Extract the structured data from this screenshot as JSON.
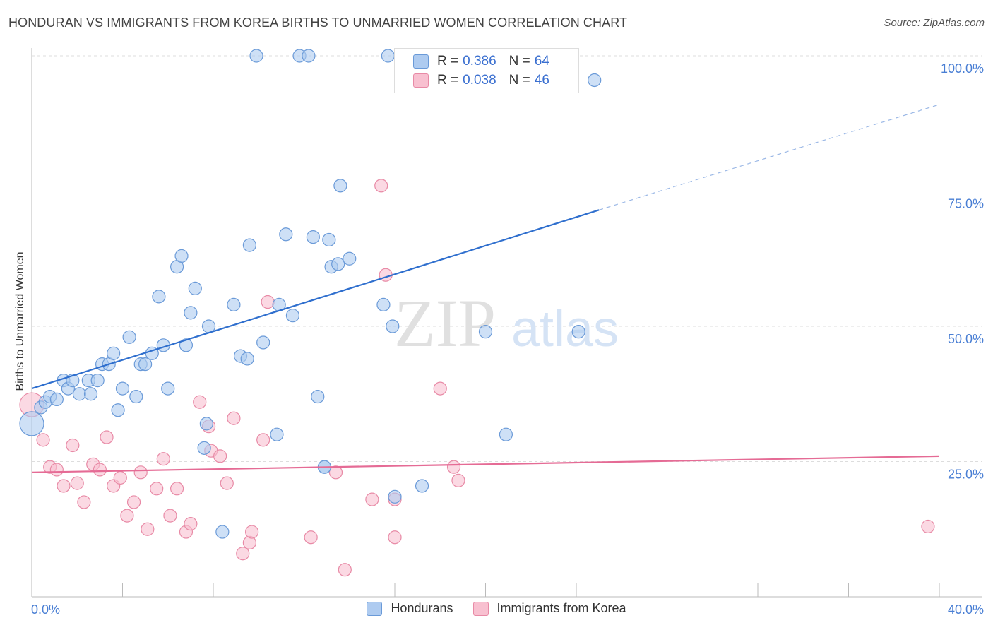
{
  "header": {
    "title": "HONDURAN VS IMMIGRANTS FROM KOREA BIRTHS TO UNMARRIED WOMEN CORRELATION CHART",
    "source": "Source: ZipAtlas.com"
  },
  "watermark": {
    "zip": "ZIP",
    "atlas": "atlas"
  },
  "legend_top": {
    "rows": [
      {
        "r_label": "R =",
        "r_value": "0.386",
        "n_label": "N =",
        "n_value": "64"
      },
      {
        "r_label": "R =",
        "r_value": "0.038",
        "n_label": "N =",
        "n_value": "46"
      }
    ]
  },
  "legend_bottom": {
    "series1": "Hondurans",
    "series2": "Immigrants from Korea"
  },
  "colors": {
    "hondurans_fill": "#aecbf0",
    "hondurans_stroke": "#6a9ad8",
    "hondurans_line": "#2f6fce",
    "korea_fill": "#f8c0d0",
    "korea_stroke": "#e88aa6",
    "korea_line": "#e56b95",
    "grid": "#dddddd",
    "tick_label": "#4a7fd4"
  },
  "chart_data": {
    "type": "scatter",
    "title": "HONDURAN VS IMMIGRANTS FROM KOREA BIRTHS TO UNMARRIED WOMEN CORRELATION CHART",
    "xlabel": "",
    "ylabel": "Births to Unmarried Women",
    "xlim": [
      0,
      40
    ],
    "ylim": [
      0,
      100
    ],
    "x_tick_labels": [
      "0.0%",
      "40.0%"
    ],
    "y_tick_values": [
      25,
      50,
      75,
      100
    ],
    "y_tick_labels": [
      "25.0%",
      "50.0%",
      "75.0%",
      "100.0%"
    ],
    "series": [
      {
        "name": "Hondurans",
        "r": 0.386,
        "n": 64,
        "trend": {
          "start": [
            0,
            38.5
          ],
          "end": [
            25,
            71.5
          ],
          "dashed_end": [
            40,
            91
          ]
        },
        "points": [
          [
            0.0,
            32,
            "big"
          ],
          [
            0.4,
            35
          ],
          [
            0.6,
            36
          ],
          [
            0.8,
            37
          ],
          [
            1.1,
            36.5
          ],
          [
            1.4,
            40
          ],
          [
            1.6,
            38.5
          ],
          [
            1.8,
            40
          ],
          [
            2.1,
            37.5
          ],
          [
            2.5,
            40
          ],
          [
            2.6,
            37.5
          ],
          [
            2.9,
            40
          ],
          [
            3.1,
            43
          ],
          [
            3.4,
            43
          ],
          [
            3.6,
            45
          ],
          [
            3.8,
            34.5
          ],
          [
            4.0,
            38.5
          ],
          [
            4.3,
            48
          ],
          [
            4.6,
            37
          ],
          [
            4.8,
            43
          ],
          [
            5.0,
            43
          ],
          [
            5.3,
            45
          ],
          [
            5.6,
            55.5
          ],
          [
            5.8,
            46.5
          ],
          [
            6.0,
            38.5
          ],
          [
            6.4,
            61
          ],
          [
            6.6,
            63
          ],
          [
            6.8,
            46.5
          ],
          [
            7.0,
            52.5
          ],
          [
            7.2,
            57
          ],
          [
            7.6,
            27.5
          ],
          [
            7.7,
            32
          ],
          [
            7.8,
            50
          ],
          [
            8.9,
            54
          ],
          [
            9.2,
            44.5
          ],
          [
            9.5,
            44
          ],
          [
            9.6,
            65
          ],
          [
            9.9,
            100
          ],
          [
            10.2,
            47
          ],
          [
            10.8,
            30
          ],
          [
            10.9,
            54
          ],
          [
            11.2,
            67
          ],
          [
            11.5,
            52
          ],
          [
            11.8,
            100
          ],
          [
            12.2,
            100
          ],
          [
            12.4,
            66.5
          ],
          [
            12.6,
            37
          ],
          [
            12.9,
            24
          ],
          [
            13.1,
            66
          ],
          [
            13.2,
            61
          ],
          [
            13.5,
            61.5
          ],
          [
            13.6,
            76
          ],
          [
            14.0,
            62.5
          ],
          [
            15.5,
            54
          ],
          [
            15.7,
            100
          ],
          [
            15.9,
            50
          ],
          [
            16.0,
            18.5
          ],
          [
            17.2,
            20.5
          ],
          [
            20.0,
            49
          ],
          [
            20.9,
            30
          ],
          [
            24.1,
            49
          ],
          [
            24.8,
            95.5
          ],
          [
            8.4,
            12
          ],
          [
            12.9,
            24
          ]
        ]
      },
      {
        "name": "Immigrants from Korea",
        "r": 0.038,
        "n": 46,
        "trend": {
          "start": [
            0,
            23
          ],
          "end": [
            40,
            26
          ]
        },
        "points": [
          [
            0.0,
            35.5,
            "big"
          ],
          [
            0.5,
            29
          ],
          [
            0.8,
            24
          ],
          [
            1.1,
            23.5
          ],
          [
            1.4,
            20.5
          ],
          [
            1.8,
            28
          ],
          [
            2.0,
            21
          ],
          [
            2.3,
            17.5
          ],
          [
            2.7,
            24.5
          ],
          [
            3.0,
            23.5
          ],
          [
            3.3,
            29.5
          ],
          [
            3.6,
            20.5
          ],
          [
            3.9,
            22
          ],
          [
            4.2,
            15
          ],
          [
            4.5,
            17.5
          ],
          [
            4.8,
            23
          ],
          [
            5.1,
            12.5
          ],
          [
            5.5,
            20
          ],
          [
            5.8,
            25.5
          ],
          [
            6.1,
            15
          ],
          [
            6.4,
            20
          ],
          [
            6.8,
            12
          ],
          [
            7.0,
            13.5
          ],
          [
            7.4,
            36
          ],
          [
            7.8,
            31.5
          ],
          [
            7.9,
            27
          ],
          [
            8.3,
            26
          ],
          [
            8.6,
            21
          ],
          [
            8.9,
            33
          ],
          [
            9.3,
            8
          ],
          [
            9.6,
            10
          ],
          [
            9.7,
            12
          ],
          [
            10.2,
            29
          ],
          [
            10.4,
            54.5
          ],
          [
            12.3,
            11
          ],
          [
            13.4,
            23
          ],
          [
            13.8,
            5
          ],
          [
            15.0,
            18
          ],
          [
            15.4,
            76
          ],
          [
            15.6,
            59.5
          ],
          [
            16.0,
            11
          ],
          [
            16.0,
            18
          ],
          [
            18.0,
            38.5
          ],
          [
            18.6,
            24
          ],
          [
            18.8,
            21.5
          ],
          [
            39.5,
            13
          ]
        ]
      }
    ]
  }
}
